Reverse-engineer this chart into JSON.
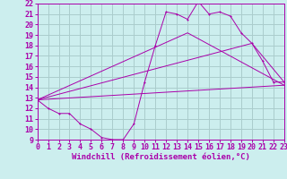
{
  "xlabel": "Windchill (Refroidissement éolien,°C)",
  "background_color": "#cceeee",
  "grid_color": "#aacccc",
  "line_color": "#aa00aa",
  "xlim": [
    0,
    23
  ],
  "ylim": [
    9,
    22
  ],
  "xticks": [
    0,
    1,
    2,
    3,
    4,
    5,
    6,
    7,
    8,
    9,
    10,
    11,
    12,
    13,
    14,
    15,
    16,
    17,
    18,
    19,
    20,
    21,
    22,
    23
  ],
  "yticks": [
    9,
    10,
    11,
    12,
    13,
    14,
    15,
    16,
    17,
    18,
    19,
    20,
    21,
    22
  ],
  "line1_x": [
    0,
    1,
    2,
    3,
    4,
    5,
    6,
    7,
    8,
    9,
    10,
    11,
    12,
    13,
    14,
    15,
    16,
    17,
    18,
    19,
    20,
    21,
    22,
    23
  ],
  "line1_y": [
    12.8,
    12.0,
    11.5,
    11.5,
    10.5,
    10.0,
    9.2,
    9.0,
    9.0,
    10.5,
    14.5,
    18.0,
    21.2,
    21.0,
    20.5,
    22.2,
    21.0,
    21.2,
    20.8,
    19.2,
    18.2,
    16.5,
    14.5,
    14.5
  ],
  "line2_x": [
    0,
    23
  ],
  "line2_y": [
    12.8,
    14.2
  ],
  "line3_x": [
    0,
    20,
    23
  ],
  "line3_y": [
    12.8,
    18.2,
    14.5
  ],
  "line4_x": [
    0,
    14,
    23
  ],
  "line4_y": [
    12.8,
    19.2,
    14.2
  ],
  "tick_fontsize": 6,
  "xlabel_fontsize": 6.5,
  "lw": 0.7,
  "ms": 2.0
}
